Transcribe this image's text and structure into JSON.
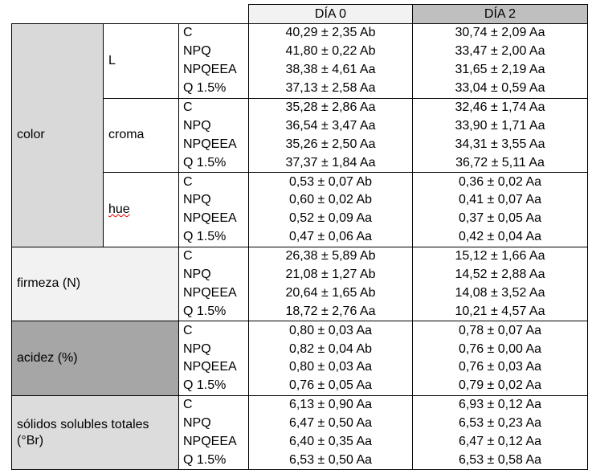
{
  "header": [
    "DÍA 0",
    "DÍA 2"
  ],
  "groups": [
    {
      "label": "color",
      "subgroups": [
        {
          "label": "L",
          "rows": [
            [
              "C",
              "40,29 ± 2,35 Ab",
              "30,74 ± 2,09 Aa"
            ],
            [
              "NPQ",
              "41,80 ± 0,22 Ab",
              "33,47 ± 2,00 Aa"
            ],
            [
              "NPQEEA",
              "38,38 ± 4,61 Aa",
              "31,65 ± 2,19 Aa"
            ],
            [
              "Q 1.5%",
              "37,13 ± 2,58 Aa",
              "33,04 ± 0,59 Aa"
            ]
          ]
        },
        {
          "label": "croma",
          "rows": [
            [
              "C",
              "35,28 ± 2,86 Aa",
              "32,46 ± 1,74 Aa"
            ],
            [
              "NPQ",
              "36,54 ± 3,47 Aa",
              "33,90 ± 1,71 Aa"
            ],
            [
              "NPQEEA",
              "35,26 ± 2,50 Aa",
              "34,31 ± 3,55 Aa"
            ],
            [
              "Q 1.5%",
              "37,37 ± 1,84 Aa",
              "36,72 ± 5,11 Aa"
            ]
          ]
        },
        {
          "label": "hue",
          "rows": [
            [
              "C",
              "0,53 ± 0,07 Ab",
              "0,36 ± 0,02 Aa"
            ],
            [
              "NPQ",
              "0,60 ± 0,02 Ab",
              "0,41 ± 0,07 Aa"
            ],
            [
              "NPQEEA",
              "0,52 ± 0,09 Aa",
              "0,37 ± 0,05 Aa"
            ],
            [
              "Q 1.5%",
              "0,47 ± 0,06 Aa",
              "0,42 ± 0,04 Aa"
            ]
          ]
        }
      ]
    },
    {
      "label": "firmeza (N)",
      "rows": [
        [
          "C",
          "26,38 ± 5,89 Ab",
          "15,12 ± 1,66 Aa"
        ],
        [
          "NPQ",
          "21,08 ± 1,27 Ab",
          "14,52 ± 2,88 Aa"
        ],
        [
          "NPQEEA",
          "20,64 ± 1,65 Ab",
          "14,08 ± 3,52 Aa"
        ],
        [
          "Q 1.5%",
          "18,72 ± 2,76 Aa",
          "10,21 ± 4,57 Aa"
        ]
      ]
    },
    {
      "label": "acidez (%)",
      "rows": [
        [
          "C",
          "0,80 ± 0,03 Aa",
          "0,78 ± 0,07 Aa"
        ],
        [
          "NPQ",
          "0,82 ± 0,04 Ab",
          "0,76 ± 0,00 Aa"
        ],
        [
          "NPQEEA",
          "0,80 ± 0,03 Aa",
          "0,76 ± 0,03 Aa"
        ],
        [
          "Q 1.5%",
          "0,76 ± 0,05 Aa",
          "0,79 ± 0,02 Aa"
        ]
      ]
    },
    {
      "label": "sólidos solubles totales (°Br)",
      "rows": [
        [
          "C",
          "6,13 ± 0,90 Aa",
          "6,93 ± 0,12 Aa"
        ],
        [
          "NPQ",
          "6,47 ± 0,50 Aa",
          "6,53 ± 0,23 Aa"
        ],
        [
          "NPQEEA",
          "6,40 ± 0,35 Aa",
          "6,47 ± 0,12 Aa"
        ],
        [
          "Q 1.5%",
          "6,53 ± 0,50 Aa",
          "6,53 ± 0,58 Aa"
        ]
      ]
    }
  ]
}
